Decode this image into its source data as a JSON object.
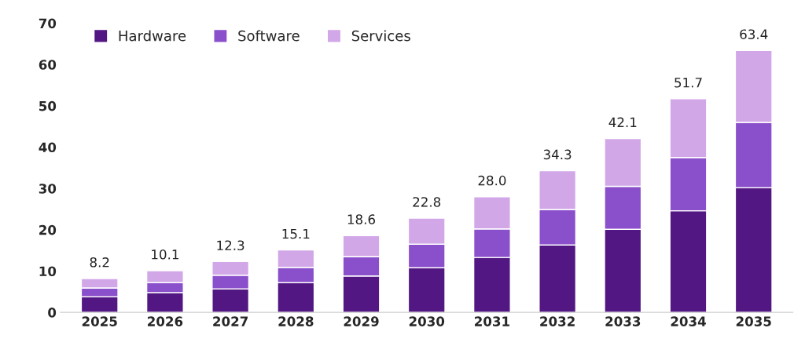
{
  "chart_data": {
    "type": "bar",
    "stacked": true,
    "categories": [
      "2025",
      "2026",
      "2027",
      "2028",
      "2029",
      "2030",
      "2031",
      "2032",
      "2033",
      "2034",
      "2035"
    ],
    "series": [
      {
        "name": "Hardware",
        "color": "#521782",
        "values": [
          3.8,
          4.8,
          5.7,
          7.2,
          8.8,
          10.8,
          13.3,
          16.3,
          20.1,
          24.6,
          30.2
        ]
      },
      {
        "name": "Software",
        "color": "#8a4fcb",
        "values": [
          2.1,
          2.4,
          3.3,
          3.7,
          4.7,
          5.7,
          6.9,
          8.6,
          10.4,
          12.9,
          15.8
        ]
      },
      {
        "name": "Services",
        "color": "#d2a7e8",
        "values": [
          2.3,
          2.9,
          3.3,
          4.2,
          5.1,
          6.3,
          7.8,
          9.4,
          11.6,
          14.2,
          17.4
        ]
      }
    ],
    "totals": [
      "8.2",
      "10.1",
      "12.3",
      "15.1",
      "18.6",
      "22.8",
      "28.0",
      "34.3",
      "42.1",
      "51.7",
      "63.4"
    ],
    "ylim": [
      0,
      70
    ],
    "yticks": [
      0,
      10,
      20,
      30,
      40,
      50,
      60,
      70
    ],
    "grid": false,
    "legend": "top left"
  }
}
